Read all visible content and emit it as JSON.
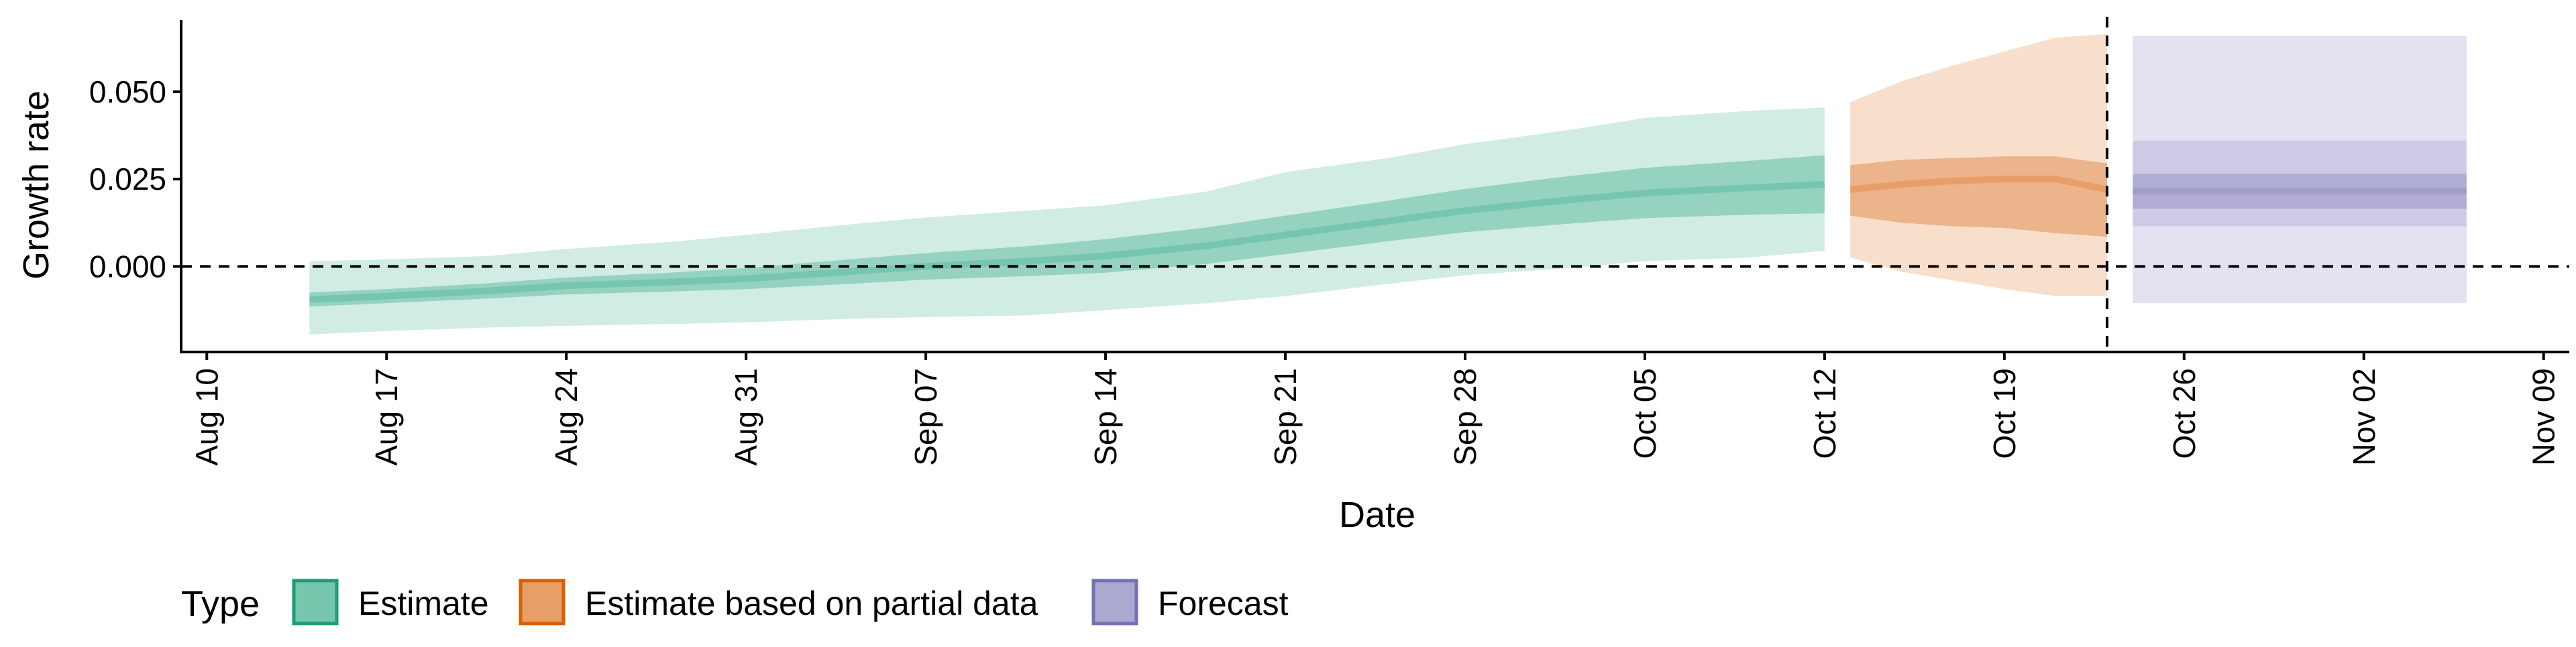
{
  "chart_data": {
    "type": "area",
    "title": "",
    "xlabel": "Date",
    "ylabel": "Growth rate",
    "x_axis": {
      "kind": "date",
      "range": [
        "2020-08-09",
        "2020-11-10"
      ],
      "ticks": [
        "2020-08-10",
        "2020-08-17",
        "2020-08-24",
        "2020-08-31",
        "2020-09-07",
        "2020-09-14",
        "2020-09-21",
        "2020-09-28",
        "2020-10-05",
        "2020-10-12",
        "2020-10-19",
        "2020-10-26",
        "2020-11-02",
        "2020-11-09"
      ],
      "tick_labels": [
        "Aug 10",
        "Aug 17",
        "Aug 24",
        "Aug 31",
        "Sep 07",
        "Sep 14",
        "Sep 21",
        "Sep 28",
        "Oct 05",
        "Oct 12",
        "Oct 19",
        "Oct 26",
        "Nov 02",
        "Nov 09"
      ]
    },
    "y_axis": {
      "range": [
        -0.0245,
        0.0705
      ],
      "ticks": [
        0.0,
        0.025,
        0.05
      ],
      "tick_labels": [
        "0.000",
        "0.025",
        "0.050"
      ]
    },
    "reference_lines": [
      {
        "axis": "y",
        "value": 0.0,
        "style": "dashed"
      },
      {
        "axis": "x",
        "value": "2020-10-23",
        "style": "dashed"
      }
    ],
    "grid": false,
    "legend": {
      "position": "bottom",
      "title": "Type",
      "items": [
        {
          "label": "Estimate",
          "color": "#1b9e77"
        },
        {
          "label": "Estimate based on partial data",
          "color": "#d95f02"
        },
        {
          "label": "Forecast",
          "color": "#7570b3"
        }
      ]
    },
    "series": [
      {
        "name": "Estimate",
        "color": "#1b9e77",
        "x": [
          "2020-08-14",
          "2020-08-17",
          "2020-08-21",
          "2020-08-24",
          "2020-08-28",
          "2020-08-31",
          "2020-09-04",
          "2020-09-07",
          "2020-09-11",
          "2020-09-14",
          "2020-09-18",
          "2020-09-21",
          "2020-09-25",
          "2020-09-28",
          "2020-10-02",
          "2020-10-05",
          "2020-10-09",
          "2020-10-12"
        ],
        "median": [
          -0.0095,
          -0.0085,
          -0.007,
          -0.0055,
          -0.0045,
          -0.0035,
          -0.0015,
          0.0,
          0.0015,
          0.003,
          0.006,
          0.009,
          0.013,
          0.016,
          0.019,
          0.021,
          0.0225,
          0.0235
        ],
        "inner_band": [
          [
            -0.0115,
            -0.0075
          ],
          [
            -0.0105,
            -0.0065
          ],
          [
            -0.0092,
            -0.0048
          ],
          [
            -0.008,
            -0.0032
          ],
          [
            -0.0072,
            -0.0018
          ],
          [
            -0.0065,
            -0.0005
          ],
          [
            -0.005,
            0.002
          ],
          [
            -0.0038,
            0.0038
          ],
          [
            -0.0028,
            0.0058
          ],
          [
            -0.0018,
            0.0078
          ],
          [
            0.0008,
            0.0112
          ],
          [
            0.0035,
            0.0145
          ],
          [
            0.0072,
            0.0188
          ],
          [
            0.0098,
            0.0222
          ],
          [
            0.0122,
            0.0258
          ],
          [
            0.0138,
            0.0282
          ],
          [
            0.0148,
            0.0302
          ],
          [
            0.0152,
            0.0318
          ]
        ],
        "outer_band": [
          [
            -0.0195,
            0.0015
          ],
          [
            -0.0185,
            0.002
          ],
          [
            -0.0175,
            0.003
          ],
          [
            -0.017,
            0.005
          ],
          [
            -0.0165,
            0.007
          ],
          [
            -0.016,
            0.009
          ],
          [
            -0.015,
            0.012
          ],
          [
            -0.0145,
            0.014
          ],
          [
            -0.014,
            0.016
          ],
          [
            -0.0125,
            0.0175
          ],
          [
            -0.0105,
            0.0215
          ],
          [
            -0.0085,
            0.027
          ],
          [
            -0.005,
            0.031
          ],
          [
            -0.0025,
            0.035
          ],
          [
            -0.0005,
            0.039
          ],
          [
            0.0015,
            0.0425
          ],
          [
            0.0025,
            0.0445
          ],
          [
            0.0045,
            0.0455
          ]
        ]
      },
      {
        "name": "Estimate based on partial data",
        "color": "#d95f02",
        "x": [
          "2020-10-13",
          "2020-10-15",
          "2020-10-17",
          "2020-10-19",
          "2020-10-21",
          "2020-10-23"
        ],
        "median": [
          0.022,
          0.0235,
          0.0245,
          0.025,
          0.025,
          0.022
        ],
        "inner_band": [
          [
            0.0145,
            0.029
          ],
          [
            0.0125,
            0.0305
          ],
          [
            0.0115,
            0.031
          ],
          [
            0.011,
            0.0315
          ],
          [
            0.0095,
            0.0315
          ],
          [
            0.0085,
            0.0295
          ]
        ],
        "outer_band": [
          [
            0.0025,
            0.047
          ],
          [
            -0.0015,
            0.053
          ],
          [
            -0.004,
            0.0575
          ],
          [
            -0.0065,
            0.0615
          ],
          [
            -0.0085,
            0.0655
          ],
          [
            -0.0085,
            0.0665
          ]
        ]
      },
      {
        "name": "Forecast",
        "color": "#7570b3",
        "x": [
          "2020-10-24",
          "2020-11-06"
        ],
        "median": [
          0.0215,
          0.0215
        ],
        "inner_band": [
          [
            0.0165,
            0.0265
          ],
          [
            0.0165,
            0.0265
          ]
        ],
        "middle_band": [
          [
            0.0115,
            0.036
          ],
          [
            0.0115,
            0.036
          ]
        ],
        "outer_band": [
          [
            -0.0105,
            0.066
          ],
          [
            -0.0105,
            0.066
          ]
        ]
      }
    ]
  }
}
